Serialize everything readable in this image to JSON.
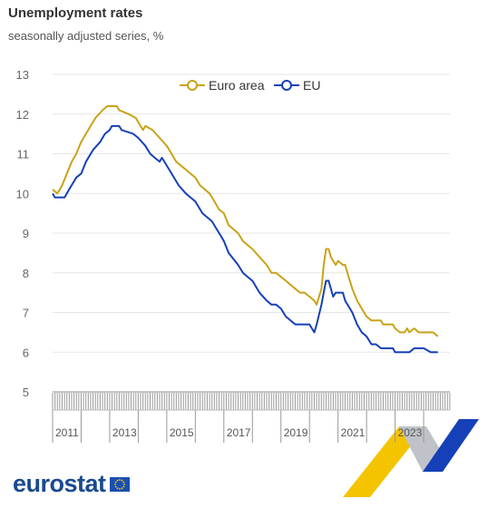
{
  "chart_data": {
    "type": "line",
    "title": "Unemployment rates",
    "subtitle": "seasonally adjusted series, %",
    "ylim": [
      5,
      13
    ],
    "yticks": [
      "5",
      "6",
      "7",
      "8",
      "9",
      "10",
      "11",
      "12",
      "13"
    ],
    "xlim": [
      2011.0,
      2024.92
    ],
    "xtick_labels": [
      "2011",
      "2013",
      "2015",
      "2017",
      "2019",
      "2021",
      "2023"
    ],
    "grid": true,
    "legend_position": "top-center",
    "series": [
      {
        "name": "Euro area",
        "color": "#c9a218",
        "points": [
          [
            2011.0,
            10.1
          ],
          [
            2011.17,
            10.0
          ],
          [
            2011.33,
            10.2
          ],
          [
            2011.5,
            10.5
          ],
          [
            2011.67,
            10.8
          ],
          [
            2011.83,
            11.0
          ],
          [
            2012.0,
            11.3
          ],
          [
            2012.25,
            11.6
          ],
          [
            2012.5,
            11.9
          ],
          [
            2012.75,
            12.1
          ],
          [
            2012.92,
            12.2
          ],
          [
            2013.25,
            12.2
          ],
          [
            2013.33,
            12.1
          ],
          [
            2013.67,
            12.0
          ],
          [
            2013.92,
            11.9
          ],
          [
            2014.0,
            11.8
          ],
          [
            2014.17,
            11.6
          ],
          [
            2014.25,
            11.7
          ],
          [
            2014.5,
            11.6
          ],
          [
            2014.75,
            11.4
          ],
          [
            2015.0,
            11.2
          ],
          [
            2015.17,
            11.0
          ],
          [
            2015.33,
            10.8
          ],
          [
            2015.67,
            10.6
          ],
          [
            2015.83,
            10.5
          ],
          [
            2016.0,
            10.4
          ],
          [
            2016.17,
            10.2
          ],
          [
            2016.5,
            10.0
          ],
          [
            2016.67,
            9.8
          ],
          [
            2016.83,
            9.6
          ],
          [
            2017.0,
            9.5
          ],
          [
            2017.17,
            9.2
          ],
          [
            2017.5,
            9.0
          ],
          [
            2017.67,
            8.8
          ],
          [
            2017.83,
            8.7
          ],
          [
            2018.0,
            8.6
          ],
          [
            2018.25,
            8.4
          ],
          [
            2018.5,
            8.2
          ],
          [
            2018.67,
            8.0
          ],
          [
            2018.83,
            8.0
          ],
          [
            2019.0,
            7.9
          ],
          [
            2019.17,
            7.8
          ],
          [
            2019.5,
            7.6
          ],
          [
            2019.67,
            7.5
          ],
          [
            2019.83,
            7.5
          ],
          [
            2020.0,
            7.4
          ],
          [
            2020.17,
            7.3
          ],
          [
            2020.25,
            7.2
          ],
          [
            2020.42,
            7.6
          ],
          [
            2020.5,
            8.2
          ],
          [
            2020.58,
            8.6
          ],
          [
            2020.67,
            8.6
          ],
          [
            2020.75,
            8.4
          ],
          [
            2020.83,
            8.3
          ],
          [
            2020.92,
            8.2
          ],
          [
            2021.0,
            8.3
          ],
          [
            2021.17,
            8.2
          ],
          [
            2021.25,
            8.2
          ],
          [
            2021.33,
            8.0
          ],
          [
            2021.5,
            7.6
          ],
          [
            2021.67,
            7.3
          ],
          [
            2021.83,
            7.1
          ],
          [
            2022.0,
            6.9
          ],
          [
            2022.17,
            6.8
          ],
          [
            2022.5,
            6.8
          ],
          [
            2022.58,
            6.7
          ],
          [
            2022.92,
            6.7
          ],
          [
            2023.0,
            6.6
          ],
          [
            2023.17,
            6.5
          ],
          [
            2023.33,
            6.5
          ],
          [
            2023.42,
            6.6
          ],
          [
            2023.5,
            6.5
          ],
          [
            2023.67,
            6.6
          ],
          [
            2023.83,
            6.5
          ],
          [
            2024.0,
            6.5
          ],
          [
            2024.33,
            6.5
          ],
          [
            2024.5,
            6.4
          ]
        ]
      },
      {
        "name": "EU",
        "color": "#1540b8",
        "points": [
          [
            2011.0,
            10.0
          ],
          [
            2011.08,
            9.9
          ],
          [
            2011.42,
            9.9
          ],
          [
            2011.58,
            10.1
          ],
          [
            2011.83,
            10.4
          ],
          [
            2012.0,
            10.5
          ],
          [
            2012.17,
            10.8
          ],
          [
            2012.42,
            11.1
          ],
          [
            2012.67,
            11.3
          ],
          [
            2012.83,
            11.5
          ],
          [
            2013.0,
            11.6
          ],
          [
            2013.08,
            11.7
          ],
          [
            2013.33,
            11.7
          ],
          [
            2013.42,
            11.6
          ],
          [
            2013.83,
            11.5
          ],
          [
            2014.0,
            11.4
          ],
          [
            2014.25,
            11.2
          ],
          [
            2014.42,
            11.0
          ],
          [
            2014.58,
            10.9
          ],
          [
            2014.75,
            10.8
          ],
          [
            2014.83,
            10.9
          ],
          [
            2015.0,
            10.7
          ],
          [
            2015.17,
            10.5
          ],
          [
            2015.42,
            10.2
          ],
          [
            2015.67,
            10.0
          ],
          [
            2015.83,
            9.9
          ],
          [
            2016.0,
            9.8
          ],
          [
            2016.25,
            9.5
          ],
          [
            2016.58,
            9.3
          ],
          [
            2016.75,
            9.1
          ],
          [
            2016.92,
            8.9
          ],
          [
            2017.0,
            8.8
          ],
          [
            2017.17,
            8.5
          ],
          [
            2017.5,
            8.2
          ],
          [
            2017.67,
            8.0
          ],
          [
            2017.83,
            7.9
          ],
          [
            2018.0,
            7.8
          ],
          [
            2018.25,
            7.5
          ],
          [
            2018.5,
            7.3
          ],
          [
            2018.67,
            7.2
          ],
          [
            2018.83,
            7.2
          ],
          [
            2019.0,
            7.1
          ],
          [
            2019.17,
            6.9
          ],
          [
            2019.5,
            6.7
          ],
          [
            2019.83,
            6.7
          ],
          [
            2020.0,
            6.7
          ],
          [
            2020.17,
            6.5
          ],
          [
            2020.25,
            6.7
          ],
          [
            2020.42,
            7.2
          ],
          [
            2020.5,
            7.5
          ],
          [
            2020.58,
            7.8
          ],
          [
            2020.67,
            7.8
          ],
          [
            2020.75,
            7.6
          ],
          [
            2020.83,
            7.4
          ],
          [
            2020.92,
            7.5
          ],
          [
            2021.17,
            7.5
          ],
          [
            2021.25,
            7.3
          ],
          [
            2021.5,
            7.0
          ],
          [
            2021.67,
            6.7
          ],
          [
            2021.83,
            6.5
          ],
          [
            2022.0,
            6.4
          ],
          [
            2022.17,
            6.2
          ],
          [
            2022.33,
            6.2
          ],
          [
            2022.5,
            6.1
          ],
          [
            2022.92,
            6.1
          ],
          [
            2023.0,
            6.0
          ],
          [
            2023.5,
            6.0
          ],
          [
            2023.67,
            6.1
          ],
          [
            2024.0,
            6.1
          ],
          [
            2024.25,
            6.0
          ],
          [
            2024.5,
            6.0
          ]
        ]
      }
    ]
  },
  "legend": {
    "items": [
      {
        "label": "Euro area",
        "color": "#c9a218"
      },
      {
        "label": "EU",
        "color": "#1540b8"
      }
    ]
  },
  "logo": {
    "text": "eurostat",
    "flag_color": "#1a4fb0",
    "star_color": "#ffcc00"
  },
  "ribbon": {
    "yellow": "#f5c400",
    "blue": "#1540b8",
    "gray": "#bfc3c9"
  }
}
